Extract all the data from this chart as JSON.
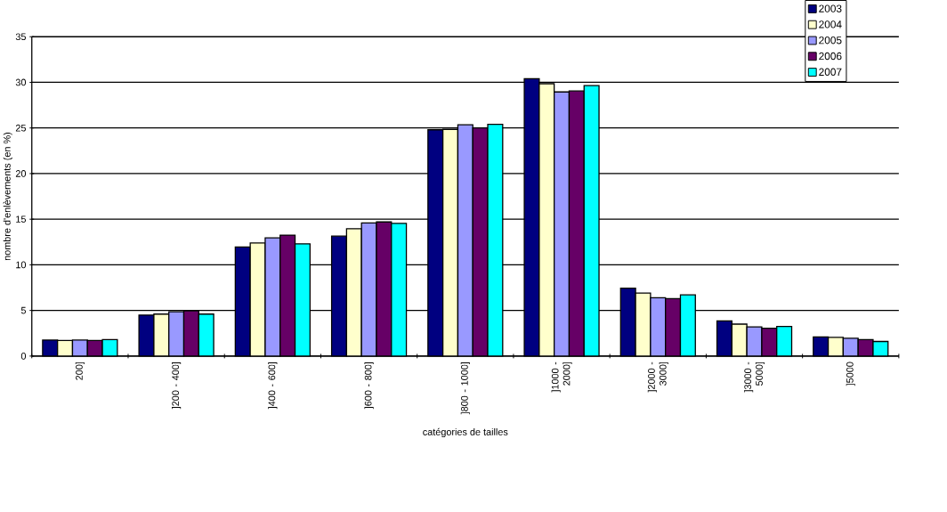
{
  "chart_data": {
    "type": "bar",
    "xlabel": "catégories de tailles",
    "ylabel": "nombre d'enlèvements (en %)",
    "categories": [
      "200]",
      "]200 - 400]",
      "]400 - 600]",
      "]600 - 800]",
      "]800 - 1000]",
      "]1000 - 2000]",
      "]2000 - 3000]",
      "]3000 - 5000]",
      "]5000"
    ],
    "series": [
      {
        "name": "2003",
        "color": "#000080",
        "values": [
          1.75,
          4.5,
          11.95,
          13.15,
          24.8,
          30.4,
          7.45,
          3.85,
          2.1
        ]
      },
      {
        "name": "2004",
        "color": "#ffffcc",
        "values": [
          1.7,
          4.6,
          12.4,
          13.95,
          24.85,
          29.85,
          6.9,
          3.5,
          2.05
        ]
      },
      {
        "name": "2005",
        "color": "#9999ff",
        "values": [
          1.75,
          4.85,
          12.95,
          14.6,
          25.35,
          28.95,
          6.4,
          3.2,
          1.95
        ]
      },
      {
        "name": "2006",
        "color": "#660066",
        "values": [
          1.7,
          4.95,
          13.25,
          14.7,
          25.0,
          29.05,
          6.3,
          3.05,
          1.8
        ]
      },
      {
        "name": "2007",
        "color": "#00ffff",
        "values": [
          1.8,
          4.6,
          12.3,
          14.55,
          25.4,
          29.65,
          6.7,
          3.25,
          1.6
        ]
      }
    ],
    "ylim": [
      0,
      35
    ],
    "yticks": [
      0,
      5,
      10,
      15,
      20,
      25,
      30,
      35
    ],
    "grid": "y",
    "legend": "top right"
  }
}
